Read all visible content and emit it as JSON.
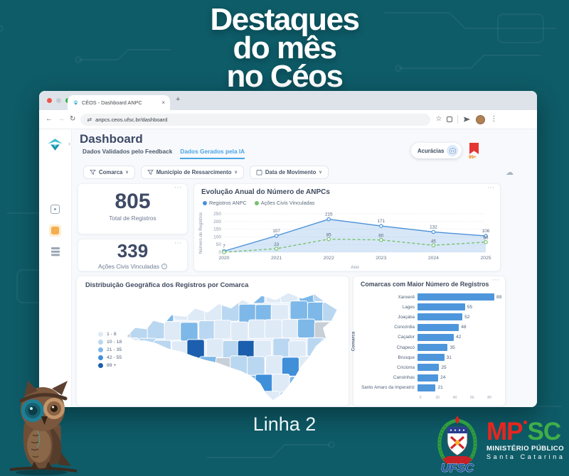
{
  "promo": {
    "title_lines": [
      "Destaques",
      "do mês",
      "no Céos"
    ],
    "caption": "Linha 2"
  },
  "browser": {
    "tab_title": "CÉOS - Dashboard ANPC",
    "url": "anpcs.ceos.ufsc.br/dashboard"
  },
  "dashboard": {
    "title": "Dashboard",
    "tabs": [
      {
        "label": "Dados Validados pelo Feedback",
        "active": false
      },
      {
        "label": "Dados Gerados pela IA",
        "active": true
      }
    ],
    "accuracy_label": "Acurácias",
    "badge_count": "99+",
    "filters": [
      {
        "label": "Comarca",
        "icon": "filter"
      },
      {
        "label": "Município de Ressarcimento",
        "icon": "filter"
      },
      {
        "label": "Data de Movimento",
        "icon": "calendar"
      }
    ],
    "kpis": [
      {
        "value": "805",
        "label": "Total de Registros",
        "info": false
      },
      {
        "value": "339",
        "label": "Ações Civis Vinculadas",
        "info": true
      }
    ]
  },
  "chart_data": [
    {
      "type": "line",
      "title": "Evolução Anual do Número de ANPCs",
      "xlabel": "Ano",
      "ylabel": "Número de Registros",
      "x": [
        "2020",
        "2021",
        "2022",
        "2023",
        "2024",
        "2025"
      ],
      "ylim": [
        0,
        250
      ],
      "yticks": [
        0,
        50,
        100,
        150,
        200,
        250
      ],
      "grid": true,
      "legend_position": "top",
      "series": [
        {
          "name": "Registros ANPC",
          "color": "#4a90d9",
          "style": "solid-area",
          "values": [
            7,
            107,
            215,
            171,
            132,
            106
          ]
        },
        {
          "name": "Ações Civis Vinculadas",
          "color": "#77c16d",
          "style": "dashed",
          "values": [
            0,
            23,
            85,
            80,
            45,
            66
          ]
        }
      ]
    },
    {
      "type": "bar",
      "title": "Comarcas com Maior Número de Registros",
      "ylabel": "Comarca",
      "categories": [
        "Xanxerê",
        "Lages",
        "Joaçaba",
        "Concórdia",
        "Caçador",
        "Chapecó",
        "Brusque",
        "Criciúma",
        "Canoinhas",
        "Santo Amaro da Imperatriz"
      ],
      "values": [
        89,
        55,
        52,
        48,
        42,
        35,
        31,
        25,
        24,
        21
      ],
      "xticks": [
        0,
        20,
        40,
        60,
        80
      ],
      "bar_color": "#4e96db"
    },
    {
      "type": "heatmap",
      "subtype": "choropleth-map",
      "title": "Distribuição Geográfica dos Registros por Comarca",
      "region": "Santa Catarina",
      "no_data_color": "#c9cfd7",
      "legend": [
        {
          "label": "1 - 8",
          "color": "#dfeaf7"
        },
        {
          "label": "10 - 18",
          "color": "#b9d7f0"
        },
        {
          "label": "21 - 35",
          "color": "#7db8e8"
        },
        {
          "label": "42 - 55",
          "color": "#3f8fd9"
        },
        {
          "label": "89 +",
          "color": "#1b5fae"
        }
      ]
    }
  ],
  "logos": {
    "ufsc_label": "UFSC",
    "mpsc_mp": "MP",
    "mpsc_sc": "SC",
    "mpsc_line1": "MINISTÉRIO PÚBLICO",
    "mpsc_line2": "Santa Catarina",
    "mp_color": "#e8251f",
    "sc_color": "#3fae49"
  }
}
